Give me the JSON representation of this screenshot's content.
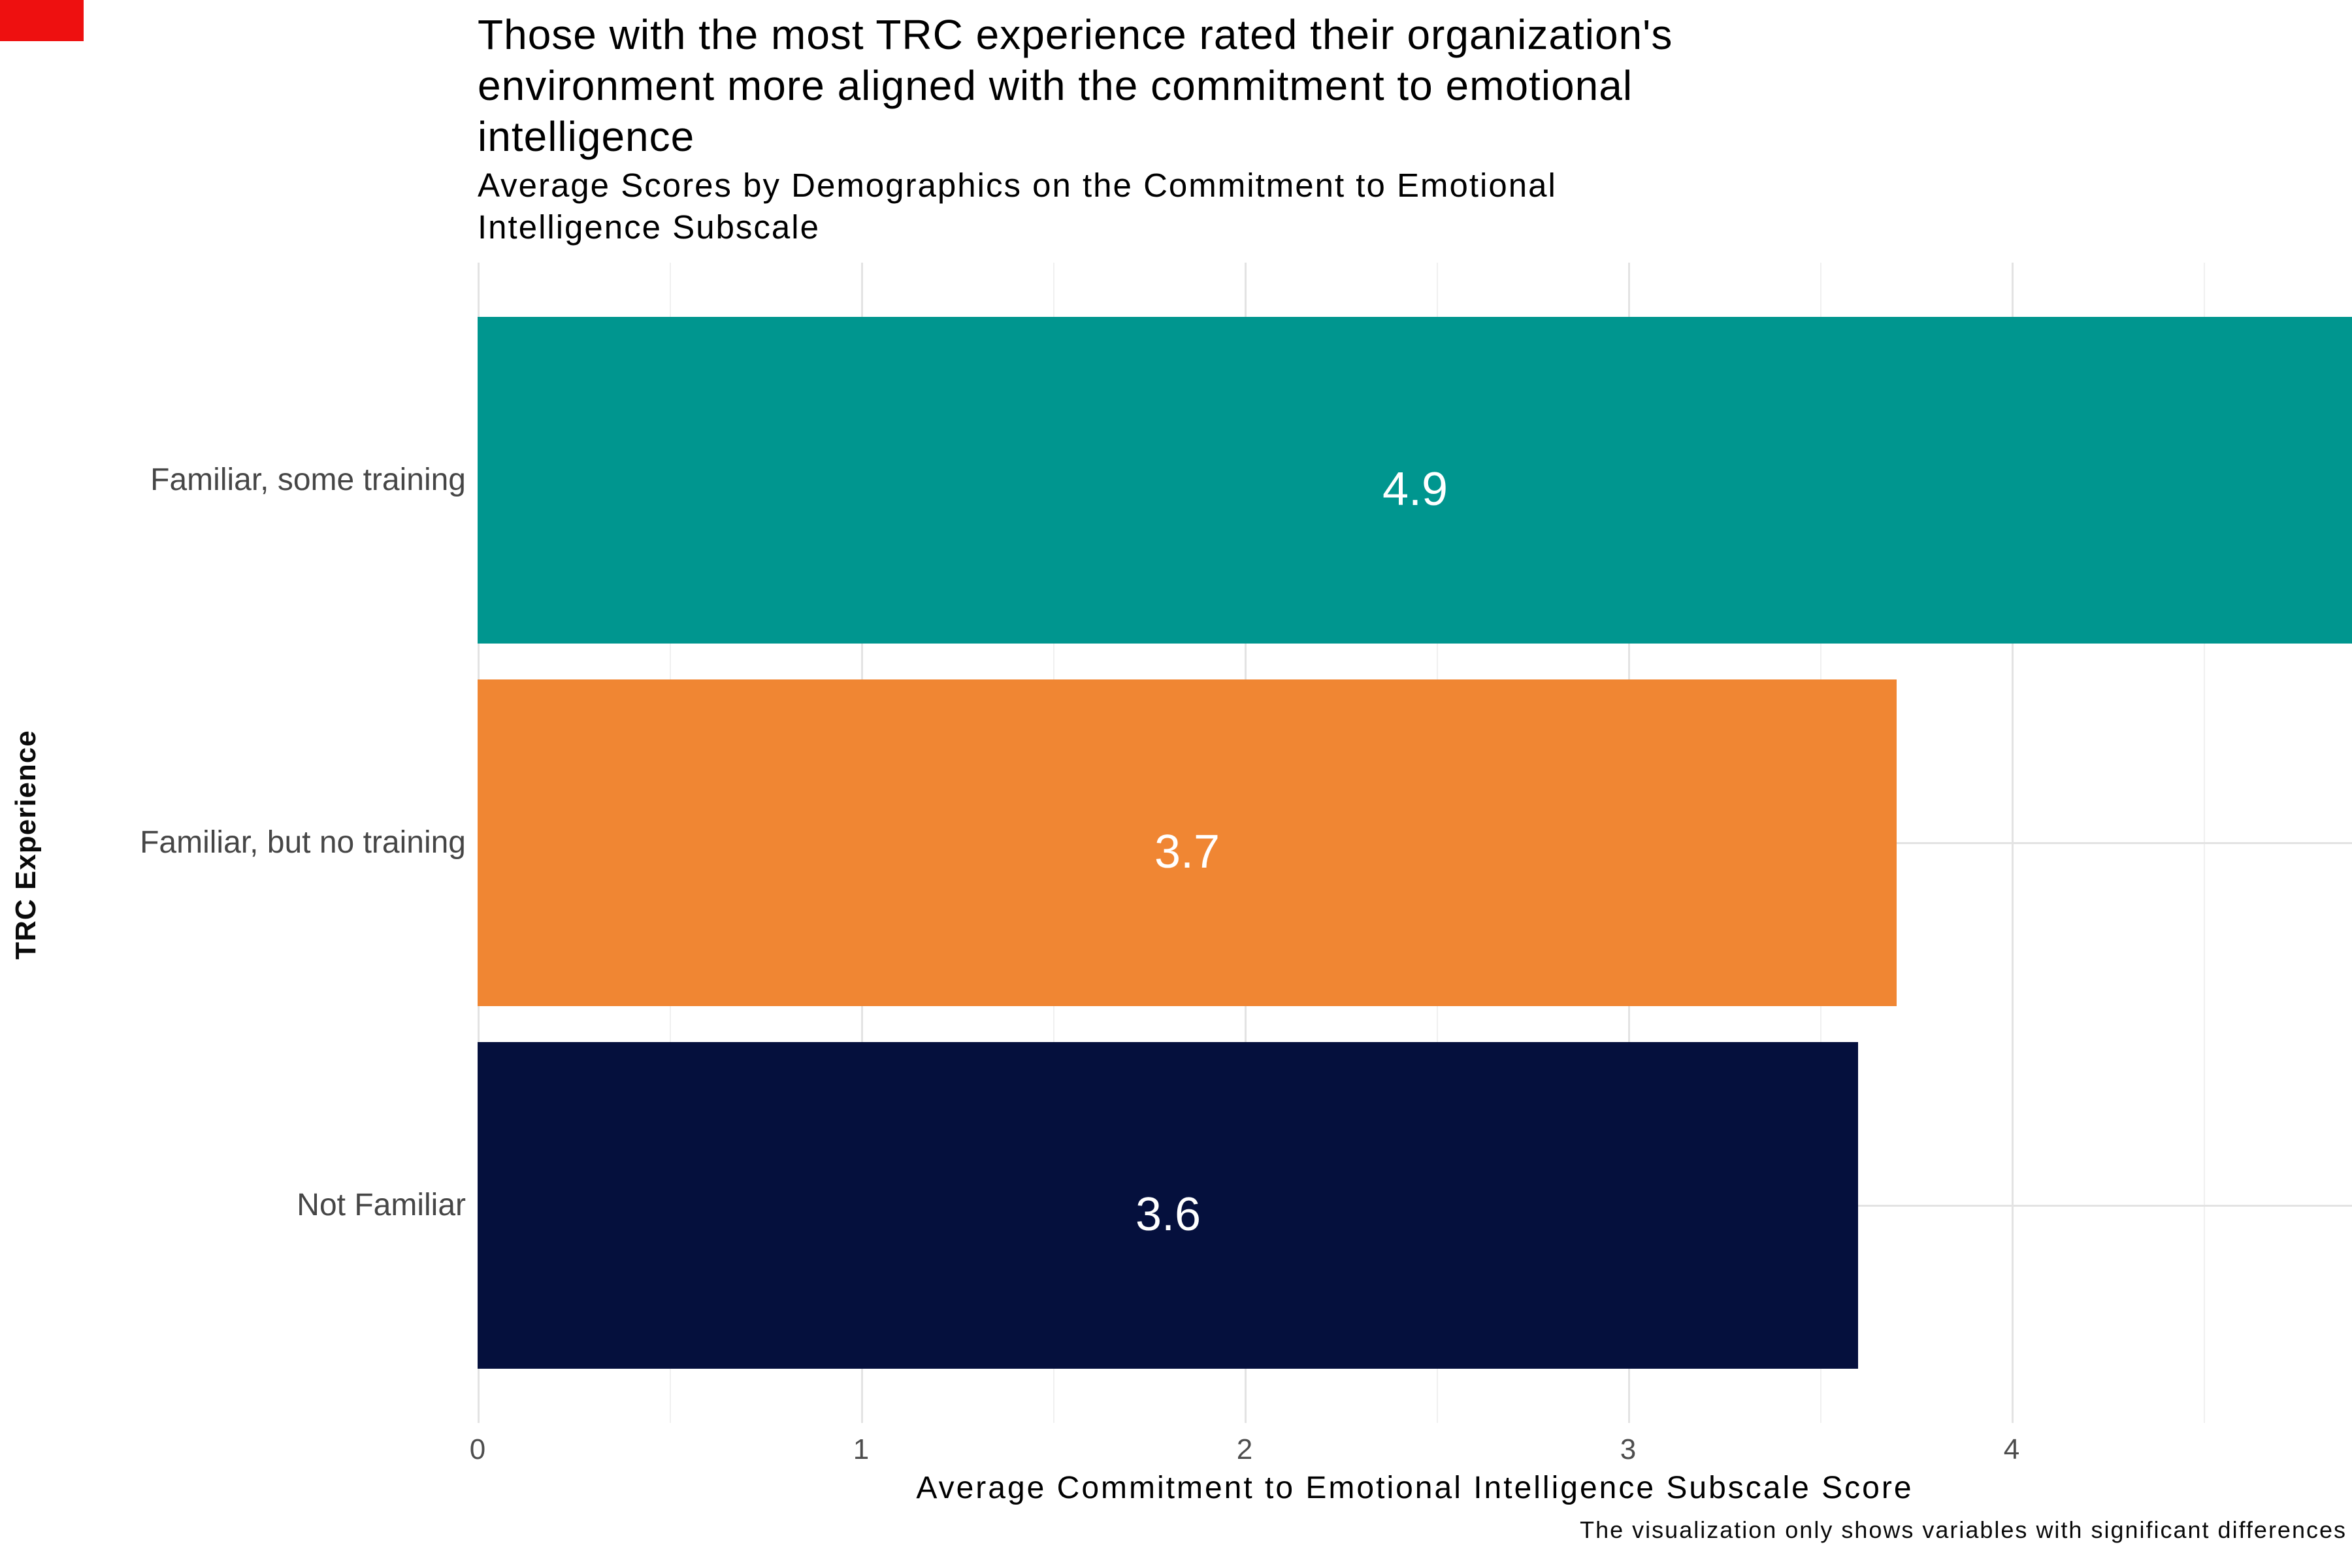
{
  "page": {
    "background_color": "#ffffff",
    "marker_color": "#ee1010"
  },
  "title": {
    "lines": [
      "Those with the most TRC experience rated their organization's",
      "environment more aligned with the commitment to emotional",
      "intelligence"
    ],
    "full_text": "Those with the most TRC experience rated their organization's environment more aligned with the commitment to emotional intelligence"
  },
  "subtitle": {
    "lines": [
      "Average Scores by Demographics on the Commitment to Emotional",
      "Intelligence Subscale"
    ],
    "full_text": "Average Scores by Demographics on the Commitment to Emotional Intelligence Subscale"
  },
  "chart_data": {
    "type": "bar",
    "orientation": "horizontal",
    "title": "Those with the most TRC experience rated their organization's environment more aligned with the commitment to emotional intelligence",
    "subtitle": "Average Scores by Demographics on the Commitment to Emotional Intelligence Subscale",
    "categories": [
      "Familiar, some training",
      "Familiar, but no training",
      "Not Familiar"
    ],
    "values": [
      4.9,
      3.7,
      3.6
    ],
    "bar_labels": [
      "4.9",
      "3.7",
      "3.6"
    ],
    "bar_colors": [
      "#00968f",
      "#f08633",
      "#05103d"
    ],
    "bar_label_color": "#ffffff",
    "xlabel": "Average Commitment to Emotional Intelligence Subscale Score",
    "ylabel": "TRC Experience",
    "caption": "The visualization only shows variables with significant differences",
    "xlim": [
      0,
      4.89
    ],
    "xticks": [
      0,
      1,
      2,
      3,
      4
    ],
    "xtick_labels": [
      "0",
      "1",
      "2",
      "3",
      "4"
    ],
    "minor_ticks": [
      0.5,
      1.5,
      2.5,
      3.5,
      4.5
    ],
    "grid": {
      "vertical_major": true,
      "vertical_minor": true,
      "horizontal_at_categories": true,
      "major_color": "#e3e3e3",
      "minor_color": "#f0f0f0"
    },
    "legend": "none",
    "background": "#ffffff"
  }
}
